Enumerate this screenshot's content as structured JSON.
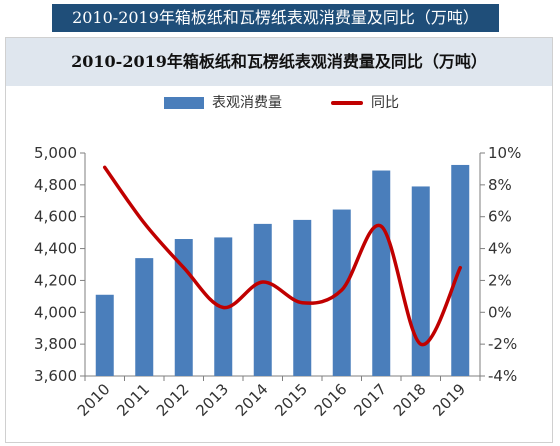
{
  "caption": "2010-2019年箱板纸和瓦楞纸表观消费量及同比（万吨）",
  "chart_data": {
    "type": "bar",
    "title": "2010-2019年箱板纸和瓦楞纸表观消费量及同比（万吨）",
    "categories": [
      "2010",
      "2011",
      "2012",
      "2013",
      "2014",
      "2015",
      "2016",
      "2017",
      "2018",
      "2019"
    ],
    "series": [
      {
        "name": "表观消费量",
        "type": "bar",
        "axis": "left",
        "color": "#4a7ebb",
        "values": [
          4110,
          4340,
          4460,
          4470,
          4555,
          4580,
          4645,
          4890,
          4790,
          4925
        ]
      },
      {
        "name": "同比",
        "type": "line",
        "axis": "right",
        "color": "#c00000",
        "values": [
          9.1,
          5.6,
          2.8,
          0.3,
          1.9,
          0.6,
          1.4,
          5.4,
          -2.0,
          2.8
        ]
      }
    ],
    "y_left": {
      "min": 3600,
      "max": 5000,
      "step": 200,
      "tick_labels": [
        "3,600",
        "3,800",
        "4,000",
        "4,200",
        "4,400",
        "4,600",
        "4,800",
        "5,000"
      ]
    },
    "y_right": {
      "min": -4,
      "max": 10,
      "step": 2,
      "tick_labels": [
        "-4%",
        "-2%",
        "0%",
        "2%",
        "4%",
        "6%",
        "8%",
        "10%"
      ]
    },
    "xlabel": "",
    "ylabel": "",
    "grid": false,
    "legend": "top"
  }
}
